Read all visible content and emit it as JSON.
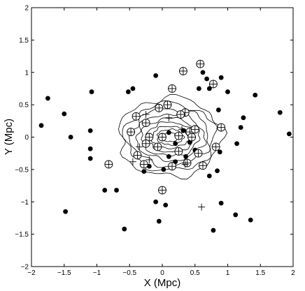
{
  "chart_data": {
    "type": "scatter",
    "title": "",
    "xlabel": "X (Mpc)",
    "ylabel": "Y (Mpc)",
    "xlim": [
      -2,
      2
    ],
    "ylim": [
      -2,
      2
    ],
    "xticks": [
      "−2",
      "−1.5",
      "−1",
      "−0.5",
      "0",
      "0.5",
      "1",
      "1.5",
      "2"
    ],
    "yticks": [
      "−2",
      "−1.5",
      "−1",
      "−0.5",
      "0",
      "0.5",
      "1",
      "1.5",
      "2"
    ],
    "grid": false,
    "colors": {
      "ink": "#000000",
      "background": "#ffffff"
    },
    "contours": {
      "center": [
        0.12,
        0.0
      ],
      "levels": [
        {
          "rx": 0.13,
          "ry": 0.07
        },
        {
          "rx": 0.2,
          "ry": 0.12
        },
        {
          "rx": 0.28,
          "ry": 0.17
        },
        {
          "rx": 0.36,
          "ry": 0.23
        },
        {
          "rx": 0.44,
          "ry": 0.29
        },
        {
          "rx": 0.52,
          "ry": 0.36
        },
        {
          "rx": 0.6,
          "ry": 0.44
        },
        {
          "rx": 0.69,
          "ry": 0.52
        },
        {
          "rx": 0.78,
          "ry": 0.61
        }
      ]
    },
    "series": [
      {
        "marker": "filled-circle",
        "points": [
          [
            -1.85,
            0.18
          ],
          [
            -1.75,
            0.6
          ],
          [
            -1.5,
            0.36
          ],
          [
            -1.4,
            0.0
          ],
          [
            -1.48,
            -1.15
          ],
          [
            -1.08,
            0.7
          ],
          [
            -1.1,
            0.1
          ],
          [
            -1.1,
            -0.18
          ],
          [
            -1.1,
            -0.33
          ],
          [
            -0.88,
            -0.82
          ],
          [
            -0.7,
            -0.82
          ],
          [
            -0.58,
            -1.42
          ],
          [
            -0.52,
            0.7
          ],
          [
            -0.45,
            0.75
          ],
          [
            -0.1,
            0.95
          ],
          [
            0.02,
            0.02
          ],
          [
            0.1,
            0.07
          ],
          [
            0.22,
            0.03
          ],
          [
            0.2,
            -0.1
          ],
          [
            0.32,
            0.1
          ],
          [
            0.36,
            -0.3
          ],
          [
            0.42,
            -0.08
          ],
          [
            0.1,
            -0.3
          ],
          [
            0.2,
            -0.38
          ],
          [
            -0.28,
            -0.53
          ],
          [
            -0.2,
            -0.45
          ],
          [
            0.02,
            -0.5
          ],
          [
            0.5,
            -0.2
          ],
          [
            0.56,
            0.75
          ],
          [
            0.62,
            1.0
          ],
          [
            0.68,
            0.9
          ],
          [
            0.72,
            0.75
          ],
          [
            0.86,
            0.42
          ],
          [
            0.9,
            0.92
          ],
          [
            0.88,
            -0.23
          ],
          [
            1.0,
            0.7
          ],
          [
            1.14,
            -0.1
          ],
          [
            1.2,
            0.15
          ],
          [
            1.24,
            0.3
          ],
          [
            1.42,
            0.65
          ],
          [
            1.8,
            0.38
          ],
          [
            1.94,
            0.05
          ],
          [
            0.72,
            -0.6
          ],
          [
            0.84,
            -0.52
          ],
          [
            0.9,
            -1.02
          ],
          [
            0.78,
            -1.44
          ],
          [
            1.12,
            -1.2
          ],
          [
            1.35,
            -1.28
          ],
          [
            -0.1,
            -1.0
          ],
          [
            0.05,
            -1.05
          ],
          [
            -0.05,
            -1.3
          ],
          [
            0.58,
            1.12
          ]
        ]
      },
      {
        "marker": "circled-plus",
        "points": [
          [
            0.32,
            1.02
          ],
          [
            0.58,
            1.13
          ],
          [
            0.78,
            0.82
          ],
          [
            0.15,
            0.75
          ],
          [
            -0.4,
            0.32
          ],
          [
            -0.48,
            0.08
          ],
          [
            -0.05,
            0.45
          ],
          [
            0.08,
            0.5
          ],
          [
            0.35,
            0.38
          ],
          [
            -0.25,
            0.22
          ],
          [
            -0.2,
            0.0
          ],
          [
            0.0,
            0.0
          ],
          [
            0.25,
            0.02
          ],
          [
            0.42,
            0.08
          ],
          [
            0.5,
            0.12
          ],
          [
            -0.25,
            -0.1
          ],
          [
            -0.07,
            -0.15
          ],
          [
            -0.38,
            -0.28
          ],
          [
            -0.28,
            -0.42
          ],
          [
            0.25,
            -0.22
          ],
          [
            0.15,
            -0.45
          ],
          [
            0.38,
            -0.4
          ],
          [
            0.55,
            -0.25
          ],
          [
            0.82,
            -0.15
          ],
          [
            0.9,
            0.15
          ],
          [
            -0.82,
            -0.42
          ],
          [
            0.0,
            -0.82
          ],
          [
            0.62,
            -0.44
          ],
          [
            0.45,
            0.0
          ],
          [
            0.28,
            0.35
          ]
        ]
      },
      {
        "marker": "plus",
        "points": [
          [
            -0.35,
            -0.15
          ],
          [
            -0.45,
            -0.38
          ],
          [
            -0.25,
            0.35
          ],
          [
            0.1,
            0.3
          ],
          [
            0.35,
            -0.42
          ],
          [
            0.6,
            -1.08
          ],
          [
            -0.2,
            -0.35
          ],
          [
            0.3,
            0.12
          ]
        ]
      }
    ]
  }
}
